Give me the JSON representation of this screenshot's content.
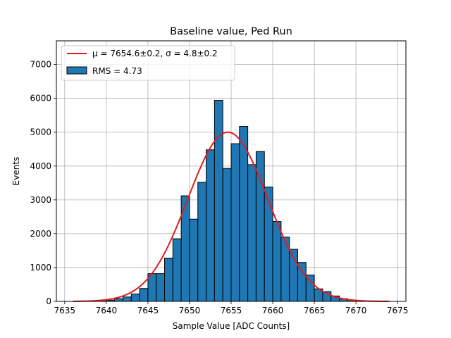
{
  "chart_data": {
    "type": "histogram",
    "title": "Baseline value, Ped Run",
    "xlabel": "Sample Value [ADC Counts]",
    "ylabel": "Events",
    "xlim": [
      7634,
      7676
    ],
    "ylim": [
      0,
      7700
    ],
    "xticks": [
      7635,
      7640,
      7645,
      7650,
      7655,
      7660,
      7665,
      7670,
      7675
    ],
    "yticks": [
      0,
      1000,
      2000,
      3000,
      4000,
      5000,
      6000,
      7000
    ],
    "grid": true,
    "legend_position": "top-left",
    "series": [
      {
        "name": "RMS = 4.73",
        "type": "bar",
        "color": "#1f77b4",
        "edgecolor": "#000000",
        "bin_edges": [
          7636,
          7637,
          7638,
          7639,
          7640,
          7641,
          7642,
          7643,
          7644,
          7645,
          7646,
          7647,
          7648,
          7649,
          7650,
          7651,
          7652,
          7653,
          7654,
          7655,
          7656,
          7657,
          7658,
          7659,
          7660,
          7661,
          7662,
          7663,
          7664,
          7665,
          7666,
          7667,
          7668,
          7669,
          7670,
          7671,
          7672,
          7673,
          7674
        ],
        "values": [
          2,
          3,
          5,
          10,
          35,
          80,
          130,
          220,
          380,
          820,
          820,
          1280,
          1850,
          3120,
          2430,
          3520,
          4480,
          5940,
          3930,
          4660,
          5170,
          4040,
          4430,
          3380,
          2360,
          1900,
          1540,
          1150,
          780,
          370,
          290,
          160,
          80,
          40,
          20,
          10,
          5,
          2
        ]
      },
      {
        "name": "μ = 7654.6±0.2, σ = 4.8±0.2",
        "type": "gaussian",
        "color": "#e41a1c",
        "mu": 7654.6,
        "sigma": 4.8,
        "amplitude": 5000,
        "x_range": [
          7636,
          7674
        ]
      }
    ]
  }
}
